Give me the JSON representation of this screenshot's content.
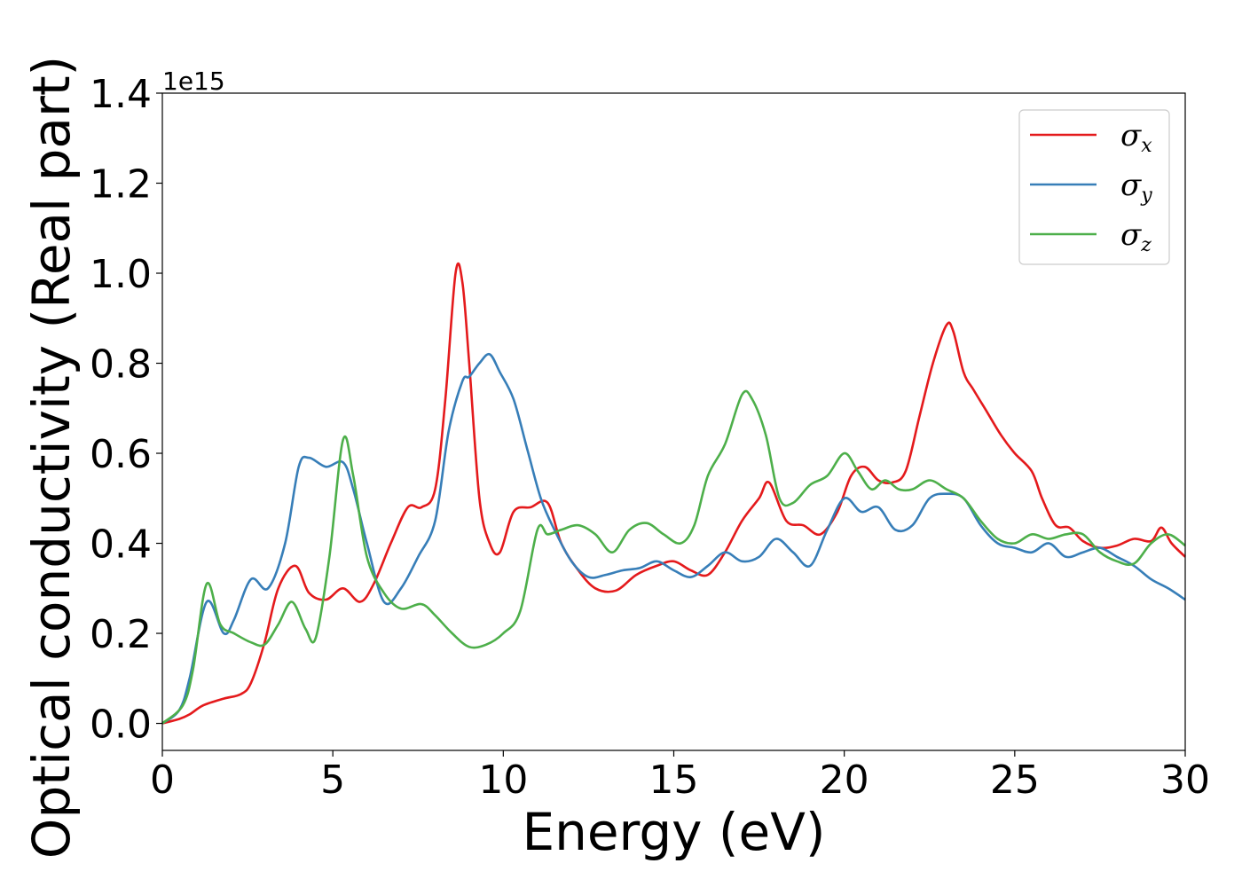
{
  "chart_data": {
    "type": "line",
    "xlabel": "Energy (eV)",
    "ylabel": "Optical conductivity (Real part)",
    "y_offset_text": "1e15",
    "y_scale_factor": 1000000000000000.0,
    "xlim": [
      0,
      30
    ],
    "ylim": [
      -0.06,
      1.4
    ],
    "xticks": [
      0,
      5,
      10,
      15,
      20,
      25,
      30
    ],
    "xtick_labels": [
      "0",
      "5",
      "10",
      "15",
      "20",
      "25",
      "30"
    ],
    "yticks": [
      0.0,
      0.2,
      0.4,
      0.6,
      0.8,
      1.0,
      1.2,
      1.4
    ],
    "ytick_labels": [
      "0.0",
      "0.2",
      "0.4",
      "0.6",
      "0.8",
      "1.0",
      "1.2",
      "1.4"
    ],
    "grid": false,
    "legend_position": "top-right",
    "series": [
      {
        "name": "σ",
        "subscript": "x",
        "color": "#e41a1c",
        "x": [
          0,
          0.5,
          0.8,
          1.2,
          1.8,
          2.3,
          2.6,
          3.0,
          3.4,
          3.9,
          4.3,
          4.8,
          5.3,
          5.8,
          6.2,
          6.7,
          7.2,
          7.6,
          8.0,
          8.3,
          8.6,
          8.8,
          9.0,
          9.3,
          9.6,
          9.9,
          10.3,
          10.8,
          11.3,
          11.7,
          12.2,
          12.7,
          13.3,
          13.9,
          14.5,
          15.0,
          15.5,
          16.0,
          16.5,
          17.0,
          17.5,
          17.8,
          18.3,
          18.8,
          19.3,
          19.8,
          20.2,
          20.6,
          21.0,
          21.4,
          21.8,
          22.2,
          22.6,
          23.0,
          23.2,
          23.5,
          23.8,
          24.2,
          24.6,
          25.0,
          25.5,
          25.8,
          26.2,
          26.6,
          27.0,
          27.5,
          28.0,
          28.5,
          29.0,
          29.3,
          29.6,
          30.0
        ],
        "y": [
          0.0,
          0.01,
          0.02,
          0.04,
          0.055,
          0.065,
          0.09,
          0.18,
          0.3,
          0.35,
          0.29,
          0.275,
          0.3,
          0.27,
          0.31,
          0.4,
          0.48,
          0.48,
          0.52,
          0.72,
          1.0,
          0.98,
          0.8,
          0.5,
          0.4,
          0.38,
          0.47,
          0.48,
          0.49,
          0.4,
          0.34,
          0.3,
          0.295,
          0.33,
          0.35,
          0.36,
          0.34,
          0.33,
          0.38,
          0.45,
          0.5,
          0.535,
          0.45,
          0.44,
          0.42,
          0.47,
          0.55,
          0.57,
          0.54,
          0.535,
          0.56,
          0.68,
          0.8,
          0.885,
          0.87,
          0.78,
          0.74,
          0.69,
          0.64,
          0.6,
          0.56,
          0.5,
          0.44,
          0.435,
          0.405,
          0.39,
          0.395,
          0.41,
          0.405,
          0.435,
          0.4,
          0.37
        ]
      },
      {
        "name": "σ",
        "subscript": "y",
        "color": "#377eb8",
        "x": [
          0,
          0.5,
          0.8,
          1.3,
          1.8,
          2.1,
          2.6,
          3.1,
          3.6,
          4.0,
          4.3,
          4.8,
          5.3,
          5.6,
          6.0,
          6.5,
          7.0,
          7.5,
          8.0,
          8.4,
          8.8,
          9.0,
          9.3,
          9.6,
          9.9,
          10.3,
          10.7,
          11.1,
          11.5,
          12.0,
          12.5,
          13.0,
          13.5,
          14.0,
          14.5,
          15.0,
          15.5,
          16.0,
          16.5,
          17.0,
          17.5,
          18.0,
          18.5,
          19.0,
          19.5,
          20.0,
          20.5,
          21.0,
          21.5,
          22.0,
          22.5,
          23.0,
          23.5,
          24.0,
          24.5,
          25.0,
          25.5,
          26.0,
          26.5,
          27.0,
          27.5,
          28.0,
          28.5,
          29.0,
          29.5,
          30.0
        ],
        "y": [
          0.0,
          0.03,
          0.1,
          0.27,
          0.2,
          0.23,
          0.32,
          0.3,
          0.4,
          0.57,
          0.59,
          0.57,
          0.58,
          0.52,
          0.4,
          0.27,
          0.3,
          0.37,
          0.45,
          0.65,
          0.76,
          0.77,
          0.8,
          0.82,
          0.78,
          0.72,
          0.61,
          0.5,
          0.43,
          0.36,
          0.325,
          0.33,
          0.34,
          0.345,
          0.36,
          0.34,
          0.325,
          0.35,
          0.38,
          0.36,
          0.37,
          0.41,
          0.38,
          0.35,
          0.43,
          0.5,
          0.47,
          0.48,
          0.43,
          0.44,
          0.5,
          0.51,
          0.5,
          0.44,
          0.4,
          0.39,
          0.38,
          0.4,
          0.37,
          0.38,
          0.39,
          0.37,
          0.35,
          0.32,
          0.3,
          0.275
        ]
      },
      {
        "name": "σ",
        "subscript": "z",
        "color": "#4daf4a",
        "x": [
          0,
          0.6,
          0.9,
          1.3,
          1.7,
          2.1,
          2.6,
          3.0,
          3.4,
          3.8,
          4.2,
          4.5,
          4.9,
          5.3,
          5.6,
          6.0,
          6.5,
          7.0,
          7.6,
          8.0,
          8.5,
          9.0,
          9.5,
          10.0,
          10.5,
          11.0,
          11.3,
          11.7,
          12.2,
          12.7,
          13.2,
          13.7,
          14.2,
          14.7,
          15.2,
          15.6,
          16.0,
          16.5,
          17.0,
          17.3,
          17.7,
          18.1,
          18.5,
          19.0,
          19.5,
          20.0,
          20.4,
          20.8,
          21.2,
          21.6,
          22.0,
          22.5,
          23.0,
          23.5,
          24.0,
          24.5,
          25.0,
          25.5,
          26.0,
          26.5,
          27.0,
          27.5,
          28.0,
          28.5,
          29.0,
          29.5,
          30.0
        ],
        "y": [
          0.0,
          0.04,
          0.12,
          0.31,
          0.22,
          0.2,
          0.18,
          0.175,
          0.22,
          0.27,
          0.21,
          0.19,
          0.37,
          0.63,
          0.55,
          0.37,
          0.29,
          0.255,
          0.265,
          0.24,
          0.2,
          0.17,
          0.175,
          0.2,
          0.25,
          0.43,
          0.42,
          0.43,
          0.44,
          0.42,
          0.38,
          0.43,
          0.445,
          0.42,
          0.4,
          0.44,
          0.55,
          0.62,
          0.73,
          0.72,
          0.64,
          0.5,
          0.49,
          0.53,
          0.55,
          0.6,
          0.56,
          0.52,
          0.54,
          0.52,
          0.52,
          0.54,
          0.52,
          0.5,
          0.45,
          0.41,
          0.4,
          0.42,
          0.41,
          0.42,
          0.42,
          0.38,
          0.36,
          0.355,
          0.4,
          0.42,
          0.395
        ]
      }
    ]
  }
}
